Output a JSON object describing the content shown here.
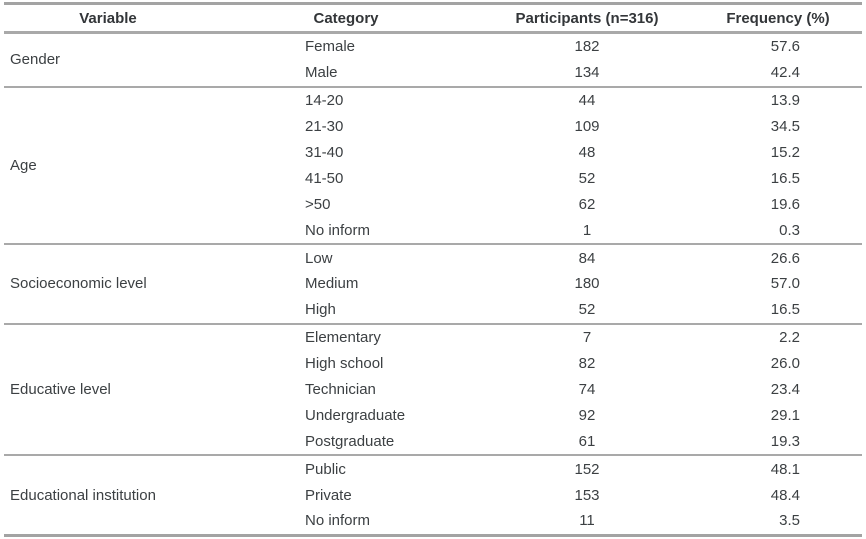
{
  "table": {
    "columns": [
      "Variable",
      "Category",
      "Participants (n=316)",
      "Frequency (%)"
    ],
    "groups": [
      {
        "variable": "Gender",
        "rows": [
          [
            "Female",
            "182",
            "57.6"
          ],
          [
            "Male",
            "134",
            "42.4"
          ]
        ]
      },
      {
        "variable": "Age",
        "rows": [
          [
            "14-20",
            "44",
            "13.9"
          ],
          [
            "21-30",
            "109",
            "34.5"
          ],
          [
            "31-40",
            "48",
            "15.2"
          ],
          [
            "41-50",
            "52",
            "16.5"
          ],
          [
            ">50",
            "62",
            "19.6"
          ],
          [
            "No inform",
            "1",
            "0.3"
          ]
        ]
      },
      {
        "variable": "Socioeconomic level",
        "rows": [
          [
            "Low",
            "84",
            "26.6"
          ],
          [
            "Medium",
            "180",
            "57.0"
          ],
          [
            "High",
            "52",
            "16.5"
          ]
        ]
      },
      {
        "variable": "Educative level",
        "rows": [
          [
            "Elementary",
            "7",
            "2.2"
          ],
          [
            "High school",
            "82",
            "26.0"
          ],
          [
            "Technician",
            "74",
            "23.4"
          ],
          [
            "Undergraduate",
            "92",
            "29.1"
          ],
          [
            "Postgraduate",
            "61",
            "19.3"
          ]
        ]
      },
      {
        "variable": "Educational institution",
        "rows": [
          [
            "Public",
            "152",
            "48.1"
          ],
          [
            "Private",
            "153",
            "48.4"
          ],
          [
            "No inform",
            "11",
            "3.5"
          ]
        ]
      }
    ],
    "colors": {
      "rule": "#a3a3a3",
      "text": "#3c4043",
      "header_text": "#333639",
      "background": "#ffffff"
    }
  }
}
